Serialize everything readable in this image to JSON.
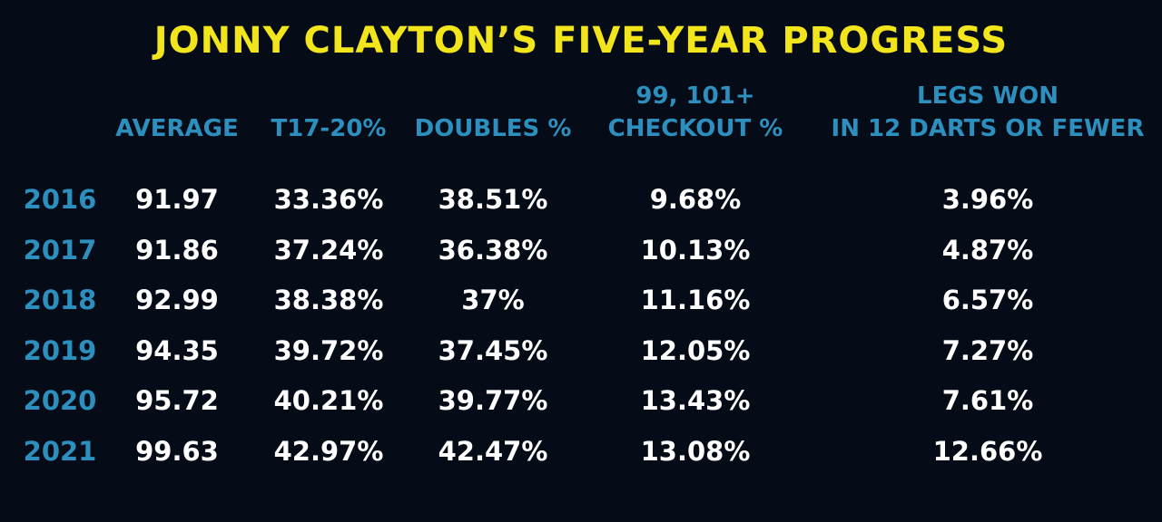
{
  "chart_data": {
    "type": "table",
    "title": "JONNY CLAYTON’S FIVE-YEAR PROGRESS",
    "columns": [
      {
        "key": "average",
        "label_lines": [
          "AVERAGE"
        ]
      },
      {
        "key": "t17_20",
        "label_lines": [
          "T17-20%"
        ]
      },
      {
        "key": "doubles",
        "label_lines": [
          "DOUBLES %"
        ]
      },
      {
        "key": "checkout",
        "label_lines": [
          "99, 101+",
          "CHECKOUT %"
        ]
      },
      {
        "key": "legs",
        "label_lines": [
          "LEGS WON",
          "IN 12 DARTS OR FEWER"
        ]
      }
    ],
    "rows": [
      {
        "year": "2016",
        "values": [
          "91.97",
          "33.36%",
          "38.51%",
          "9.68%",
          "3.96%"
        ]
      },
      {
        "year": "2017",
        "values": [
          "91.86",
          "37.24%",
          "36.38%",
          "10.13%",
          "4.87%"
        ]
      },
      {
        "year": "2018",
        "values": [
          "92.99",
          "38.38%",
          "37%",
          "11.16%",
          "6.57%"
        ]
      },
      {
        "year": "2019",
        "values": [
          "94.35",
          "39.72%",
          "37.45%",
          "12.05%",
          "7.27%"
        ]
      },
      {
        "year": "2020",
        "values": [
          "95.72",
          "40.21%",
          "39.77%",
          "13.43%",
          "7.61%"
        ]
      },
      {
        "year": "2021",
        "values": [
          "99.63",
          "42.97%",
          "42.47%",
          "13.08%",
          "12.66%"
        ]
      }
    ]
  },
  "colors": {
    "background": "#060c17",
    "title": "#f2e51b",
    "header": "#2c8fbe",
    "year": "#2c8fbe",
    "value": "#ffffff"
  }
}
